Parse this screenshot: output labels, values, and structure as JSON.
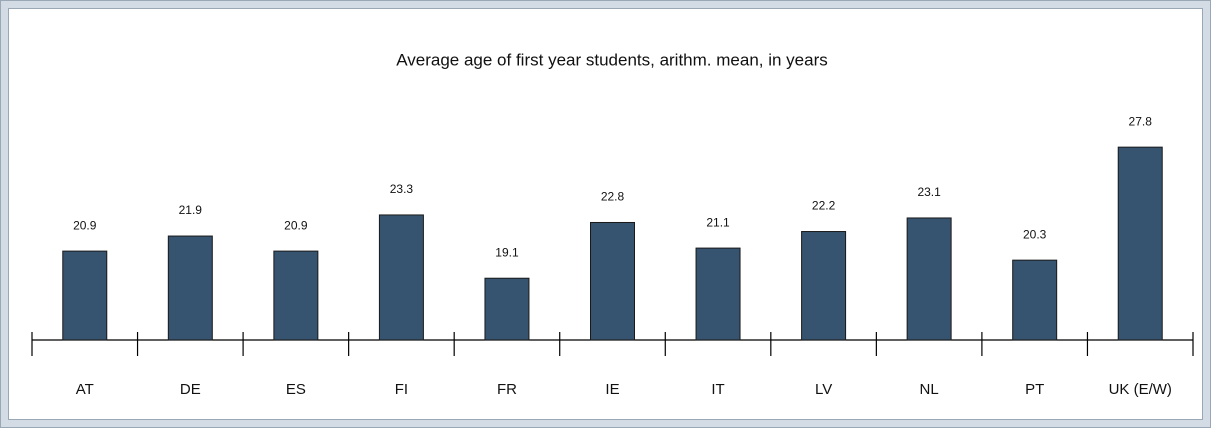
{
  "chart_data": {
    "type": "bar",
    "title": "Average age of first year students, arithm. mean, in years",
    "categories": [
      "AT",
      "DE",
      "ES",
      "FI",
      "FR",
      "IE",
      "IT",
      "LV",
      "NL",
      "PT",
      "UK (E/W)"
    ],
    "values": [
      20.9,
      21.9,
      20.9,
      23.3,
      19.1,
      22.8,
      21.1,
      22.2,
      23.1,
      20.3,
      27.8
    ],
    "color": "#36536f",
    "ylim": [
      15,
      30
    ]
  }
}
